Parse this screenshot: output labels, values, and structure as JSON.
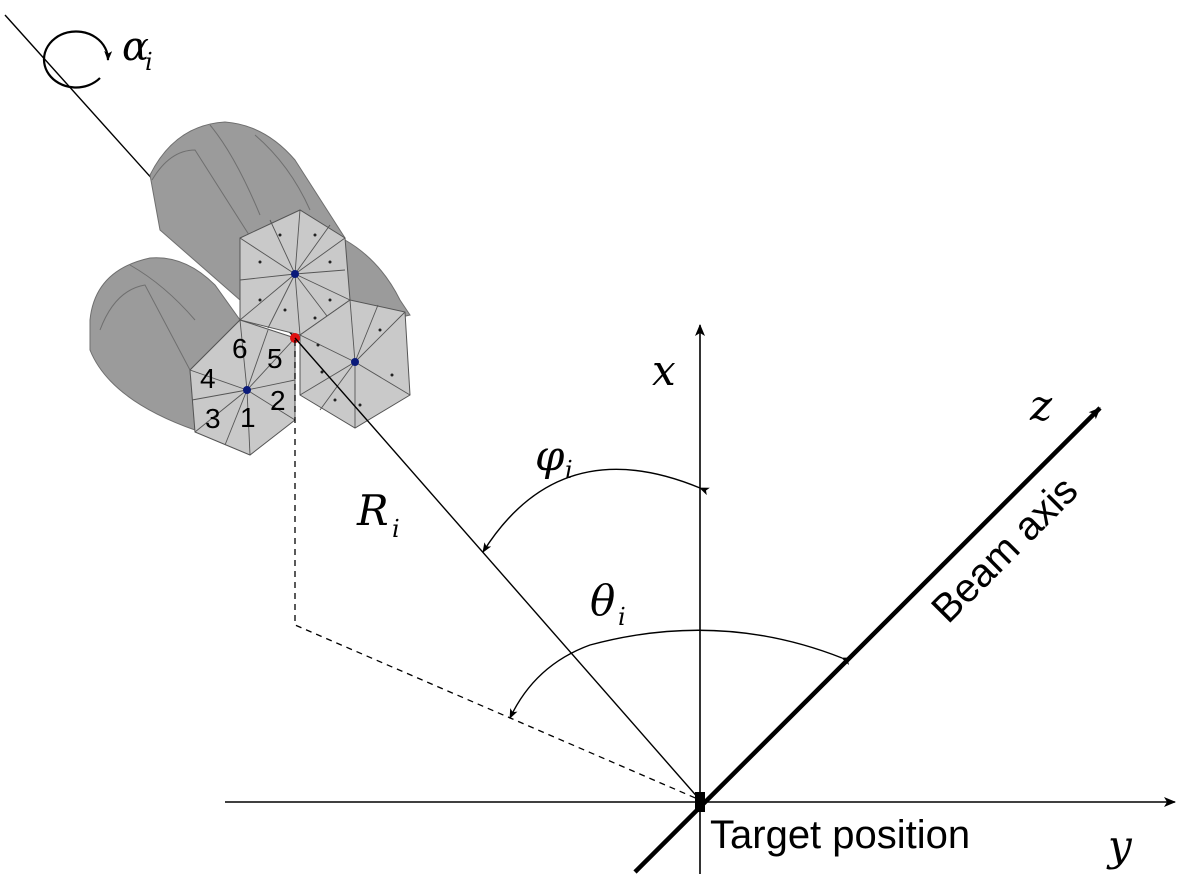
{
  "labels": {
    "alpha": "α",
    "alpha_sub": "i",
    "x": "x",
    "y": "y",
    "z": "z",
    "phi": "φ",
    "phi_sub": "i",
    "theta": "θ",
    "theta_sub": "i",
    "R": "R",
    "R_sub": "i",
    "beam_axis": "Beam axis",
    "target_position": "Target position"
  },
  "segments": [
    "1",
    "2",
    "3",
    "4",
    "5",
    "6"
  ],
  "colors": {
    "detector_fill": "#c4c4c4",
    "detector_side": "#9a9a9a",
    "hexface": "#c9c9c9",
    "center_dot": "#0a1a7a",
    "interaction_dot": "#e01010"
  }
}
